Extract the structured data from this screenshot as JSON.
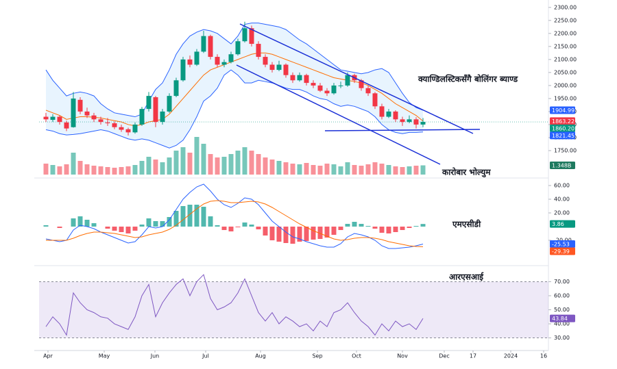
{
  "chart_data": [
    {
      "type": "candlestick",
      "annotation": "क्याण्डिलस्टिकसँगै बोलिंगर ब्याण्ड",
      "colors": {
        "up": "#089981",
        "down": "#f23645"
      },
      "ohlc": [
        [
          1880,
          1895,
          1860,
          1870
        ],
        [
          1868,
          1890,
          1860,
          1880
        ],
        [
          1880,
          1885,
          1850,
          1860
        ],
        [
          1858,
          1865,
          1825,
          1835
        ],
        [
          1840,
          1975,
          1838,
          1950
        ],
        [
          1945,
          1955,
          1890,
          1900
        ],
        [
          1900,
          1915,
          1875,
          1885
        ],
        [
          1885,
          1895,
          1860,
          1870
        ],
        [
          1870,
          1880,
          1850,
          1860
        ],
        [
          1858,
          1875,
          1845,
          1855
        ],
        [
          1855,
          1862,
          1832,
          1840
        ],
        [
          1840,
          1850,
          1822,
          1830
        ],
        [
          1832,
          1838,
          1808,
          1820
        ],
        [
          1820,
          1858,
          1815,
          1850
        ],
        [
          1850,
          1918,
          1845,
          1910
        ],
        [
          1910,
          1975,
          1900,
          1960
        ],
        [
          1955,
          1960,
          1840,
          1860
        ],
        [
          1860,
          1910,
          1850,
          1900
        ],
        [
          1900,
          1970,
          1895,
          1960
        ],
        [
          1960,
          2030,
          1955,
          2020
        ],
        [
          2020,
          2110,
          2015,
          2100
        ],
        [
          2100,
          2115,
          2070,
          2080
        ],
        [
          2080,
          2140,
          2075,
          2130
        ],
        [
          2130,
          2210,
          2125,
          2190
        ],
        [
          2190,
          2195,
          2100,
          2110
        ],
        [
          2110,
          2120,
          2070,
          2080
        ],
        [
          2080,
          2100,
          2070,
          2090
        ],
        [
          2090,
          2130,
          2085,
          2120
        ],
        [
          2120,
          2180,
          2115,
          2170
        ],
        [
          2170,
          2245,
          2165,
          2220
        ],
        [
          2220,
          2230,
          2150,
          2160
        ],
        [
          2160,
          2170,
          2100,
          2110
        ],
        [
          2110,
          2120,
          2070,
          2080
        ],
        [
          2080,
          2090,
          2050,
          2060
        ],
        [
          2060,
          2095,
          2055,
          2080
        ],
        [
          2080,
          2085,
          2030,
          2040
        ],
        [
          2040,
          2050,
          2010,
          2020
        ],
        [
          2020,
          2050,
          2015,
          2040
        ],
        [
          2040,
          2045,
          2000,
          2010
        ],
        [
          2010,
          2020,
          1990,
          2000
        ],
        [
          2000,
          2010,
          1975,
          1980
        ],
        [
          1980,
          1990,
          1960,
          1970
        ],
        [
          1970,
          2010,
          1965,
          2000
        ],
        [
          2000,
          2015,
          1990,
          2000
        ],
        [
          2000,
          2050,
          1995,
          2040
        ],
        [
          2040,
          2045,
          2010,
          2020
        ],
        [
          2020,
          2025,
          1980,
          1990
        ],
        [
          1990,
          2000,
          1960,
          1970
        ],
        [
          1970,
          1975,
          1910,
          1920
        ],
        [
          1920,
          1930,
          1870,
          1880
        ],
        [
          1880,
          1910,
          1875,
          1900
        ],
        [
          1900,
          1905,
          1860,
          1870
        ],
        [
          1870,
          1880,
          1845,
          1860
        ],
        [
          1860,
          1885,
          1855,
          1870
        ],
        [
          1870,
          1878,
          1835,
          1850
        ],
        [
          1850,
          1875,
          1840,
          1860.2
        ]
      ],
      "series": [
        {
          "color": "#2962ff",
          "values": [
            2060,
            2020,
            1990,
            1960,
            1970,
            1975,
            1970,
            1960,
            1930,
            1910,
            1895,
            1890,
            1885,
            1880,
            1890,
            1940,
            1985,
            2010,
            2060,
            2120,
            2160,
            2190,
            2205,
            2215,
            2210,
            2200,
            2180,
            2160,
            2190,
            2235,
            2240,
            2240,
            2235,
            2230,
            2225,
            2215,
            2195,
            2175,
            2160,
            2140,
            2120,
            2100,
            2080,
            2060,
            2055,
            2050,
            2045,
            2050,
            2060,
            2065,
            2050,
            2010,
            1970,
            1935,
            1915,
            1904.99
          ]
        },
        {
          "color": "#ff6d00",
          "values": [
            1905,
            1895,
            1885,
            1870,
            1875,
            1880,
            1880,
            1878,
            1875,
            1870,
            1865,
            1860,
            1850,
            1845,
            1850,
            1860,
            1865,
            1870,
            1890,
            1920,
            1950,
            1980,
            2010,
            2040,
            2060,
            2070,
            2080,
            2090,
            2100,
            2110,
            2120,
            2125,
            2125,
            2120,
            2110,
            2100,
            2090,
            2080,
            2070,
            2060,
            2050,
            2040,
            2030,
            2025,
            2020,
            2015,
            2010,
            2000,
            1985,
            1970,
            1950,
            1930,
            1915,
            1900,
            1885,
            1863.22
          ]
        },
        {
          "color": "#2962ff",
          "values": [
            1830,
            1825,
            1815,
            1810,
            1812,
            1815,
            1820,
            1825,
            1830,
            1825,
            1815,
            1805,
            1795,
            1790,
            1795,
            1790,
            1780,
            1770,
            1760,
            1770,
            1790,
            1830,
            1880,
            1940,
            1960,
            1990,
            2040,
            2060,
            2040,
            2010,
            2010,
            2020,
            2015,
            2010,
            2000,
            1990,
            1985,
            1985,
            1975,
            1960,
            1950,
            1945,
            1930,
            1920,
            1925,
            1920,
            1910,
            1900,
            1880,
            1850,
            1830,
            1820,
            1815,
            1820,
            1820,
            1821.45
          ]
        }
      ],
      "ylim": [
        1650,
        2310
      ],
      "yticks": [
        {
          "value": 2300,
          "label": "2300.00"
        },
        {
          "value": 2250,
          "label": "2250.00"
        },
        {
          "value": 2200,
          "label": "2200.00"
        },
        {
          "value": 2150,
          "label": "2150.00"
        },
        {
          "value": 2100,
          "label": "2100.00"
        },
        {
          "value": 2050,
          "label": "2050.00"
        },
        {
          "value": 2000,
          "label": "2000.00"
        },
        {
          "value": 1950,
          "label": "1950.00"
        },
        {
          "value": 1900,
          "label": "1900.00"
        },
        {
          "value": 1850,
          "label": "1850.00"
        },
        {
          "value": 1800,
          "label": "1800.00"
        },
        {
          "value": 1750,
          "label": "1750.00"
        }
      ],
      "badges": [
        {
          "value": 1904.99,
          "label": "1904.99",
          "color": "#2962ff"
        },
        {
          "value": 1863.22,
          "label": "1863.22",
          "color": "#f23645"
        },
        {
          "value": 1860.2,
          "label": "1860.20",
          "color": "#089981"
        },
        {
          "value": 1821.45,
          "label": "1821.45",
          "color": "#2962ff"
        }
      ],
      "xlim": [
        -1,
        73.3
      ],
      "xticks": [
        {
          "value": 0.3,
          "label": "Apr"
        },
        {
          "value": 8.5,
          "label": "May"
        },
        {
          "value": 15.9,
          "label": "Jun"
        },
        {
          "value": 23.3,
          "label": "Jul"
        },
        {
          "value": 31.3,
          "label": "Aug"
        },
        {
          "value": 39.6,
          "label": "Sep"
        },
        {
          "value": 45.3,
          "label": "Oct"
        },
        {
          "value": 52,
          "label": "Nov"
        },
        {
          "value": 58.1,
          "label": "Dec"
        },
        {
          "value": 62.3,
          "label": "17"
        },
        {
          "value": 67.8,
          "label": "2024"
        },
        {
          "value": 72.6,
          "label": "16"
        }
      ]
    },
    {
      "type": "bar",
      "annotation": "कारोबार भोल्युम",
      "colors": {
        "up": "rgba(8,153,129,0.55)",
        "down": "rgba(242,54,69,0.55)"
      },
      "values": [
        1.6,
        1.4,
        1.2,
        1.5,
        3.2,
        2.0,
        1.5,
        1.3,
        1.2,
        1.1,
        1.0,
        1.1,
        1.2,
        1.4,
        2.0,
        2.6,
        2.2,
        1.8,
        2.5,
        3.5,
        4.0,
        3.2,
        5.5,
        4.5,
        3.0,
        2.5,
        2.6,
        3.0,
        3.5,
        4.0,
        3.5,
        3.0,
        2.5,
        2.2,
        2.0,
        1.8,
        1.6,
        1.5,
        1.7,
        1.4,
        1.3,
        1.6,
        1.5,
        1.2,
        1.8,
        1.4,
        1.3,
        1.5,
        1.8,
        1.6,
        1.4,
        1.2,
        1.1,
        1.2,
        1.3,
        1.348
      ],
      "ylim": [
        0,
        6
      ],
      "badges": [
        {
          "value": 1.348,
          "label": "1.348B",
          "color": "#1e7a5f"
        }
      ]
    },
    {
      "type": "macd",
      "annotation": "एमएसीडी",
      "series": [
        {
          "color": "#2962ff",
          "values": [
            -18,
            -20,
            -22,
            -20,
            -5,
            2,
            0,
            -3,
            -8,
            -12,
            -16,
            -20,
            -24,
            -22,
            -12,
            0,
            -2,
            0,
            10,
            25,
            40,
            50,
            58,
            62,
            52,
            40,
            32,
            28,
            34,
            42,
            40,
            32,
            20,
            8,
            0,
            -8,
            -15,
            -18,
            -22,
            -25,
            -28,
            -30,
            -30,
            -25,
            -15,
            -10,
            -12,
            -15,
            -20,
            -28,
            -32,
            -32,
            -31,
            -30,
            -28,
            -25.53
          ]
        },
        {
          "color": "#ff6d00",
          "values": [
            -20,
            -20,
            -20,
            -20,
            -17,
            -13,
            -10,
            -8,
            -8,
            -9,
            -10,
            -12,
            -14,
            -16,
            -15,
            -12,
            -10,
            -8,
            -4,
            2,
            10,
            18,
            26,
            33,
            37,
            38,
            37,
            35,
            35,
            36,
            37,
            36,
            33,
            28,
            22,
            16,
            10,
            4,
            -1,
            -6,
            -10,
            -14,
            -18,
            -20,
            -19,
            -17,
            -16,
            -16,
            -17,
            -19,
            -22,
            -24,
            -26,
            -28,
            -29,
            -29.39
          ]
        },
        {
          "colors": {
            "up": "#26a69a",
            "down": "#f23645"
          },
          "values": [
            2,
            0,
            -2,
            0,
            12,
            15,
            10,
            5,
            0,
            -3,
            -6,
            -8,
            -10,
            -6,
            3,
            12,
            8,
            8,
            14,
            23,
            30,
            32,
            32,
            29,
            15,
            2,
            -5,
            -7,
            -1,
            6,
            3,
            -4,
            -13,
            -20,
            -22,
            -24,
            -25,
            -22,
            -21,
            -19,
            -18,
            -16,
            -12,
            -5,
            4,
            7,
            4,
            1,
            -3,
            -9,
            -10,
            -8,
            -5,
            -2,
            1,
            3.86
          ]
        }
      ],
      "ylim": [
        -49,
        69
      ],
      "yticks": [
        {
          "value": 60,
          "label": "60.00"
        },
        {
          "value": 40,
          "label": "40.00"
        },
        {
          "value": 20,
          "label": "20.00"
        },
        {
          "value": -20,
          "label": "-20.00"
        }
      ],
      "badges": [
        {
          "value": 3.86,
          "label": "3.86",
          "color": "#089981"
        },
        {
          "value": -25.53,
          "label": "-25.53",
          "color": "#2962ff"
        },
        {
          "value": -29.39,
          "label": "-29.39",
          "color": "#ff5722"
        }
      ]
    },
    {
      "type": "line",
      "annotation": "आरएसआई",
      "color": "#7e57c2",
      "values": [
        38,
        45,
        40,
        32,
        62,
        55,
        50,
        48,
        45,
        44,
        40,
        38,
        36,
        45,
        60,
        68,
        45,
        55,
        62,
        68,
        72,
        60,
        70,
        75,
        58,
        50,
        52,
        55,
        62,
        72,
        60,
        48,
        42,
        48,
        40,
        45,
        42,
        38,
        40,
        35,
        42,
        38,
        48,
        50,
        55,
        48,
        42,
        38,
        32,
        40,
        35,
        42,
        38,
        40,
        36,
        43.84
      ],
      "band": [
        30,
        70
      ],
      "ylim": [
        22,
        78
      ],
      "yticks": [
        {
          "value": 70,
          "label": "70.00"
        },
        {
          "value": 60,
          "label": "60.00"
        },
        {
          "value": 50,
          "label": "50.00"
        },
        {
          "value": 40,
          "label": "40.00"
        },
        {
          "value": 30,
          "label": "30.00"
        }
      ],
      "badges": [
        {
          "value": 43.84,
          "label": "43.84",
          "color": "#7e57c2"
        }
      ]
    }
  ]
}
